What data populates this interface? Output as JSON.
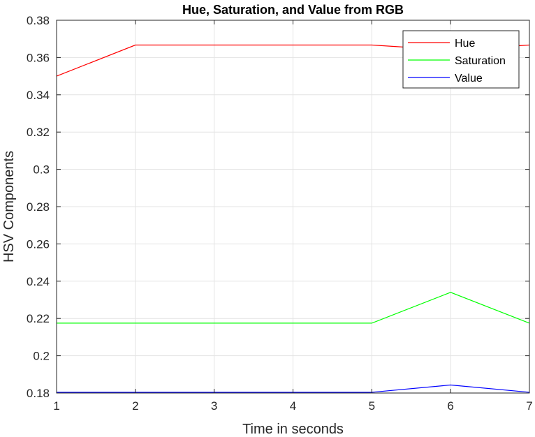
{
  "chart_data": {
    "type": "line",
    "title": "Hue, Saturation, and Value from RGB",
    "xlabel": "Time in seconds",
    "ylabel": "HSV Components",
    "xlim": [
      1,
      7
    ],
    "ylim": [
      0.18,
      0.38
    ],
    "xticks": [
      1,
      2,
      3,
      4,
      5,
      6,
      7
    ],
    "yticks": [
      0.18,
      0.2,
      0.22,
      0.24,
      0.26,
      0.28,
      0.3,
      0.32,
      0.34,
      0.36,
      0.38
    ],
    "ytick_labels": [
      "0.18",
      "0.2",
      "0.22",
      "0.24",
      "0.26",
      "0.28",
      "0.3",
      "0.32",
      "0.34",
      "0.36",
      "0.38"
    ],
    "grid": true,
    "legend_position": "top-right",
    "x": [
      1,
      2,
      3,
      4,
      5,
      6,
      7
    ],
    "series": [
      {
        "name": "Hue",
        "color": "#ff0000",
        "values": [
          0.35,
          0.3667,
          0.3667,
          0.3667,
          0.3667,
          0.364,
          0.3667
        ]
      },
      {
        "name": "Saturation",
        "color": "#00ff00",
        "values": [
          0.2175,
          0.2175,
          0.2175,
          0.2175,
          0.2175,
          0.234,
          0.2175
        ]
      },
      {
        "name": "Value",
        "color": "#0000ff",
        "values": [
          0.1804,
          0.1804,
          0.1804,
          0.1804,
          0.1804,
          0.1843,
          0.1804
        ]
      }
    ]
  }
}
